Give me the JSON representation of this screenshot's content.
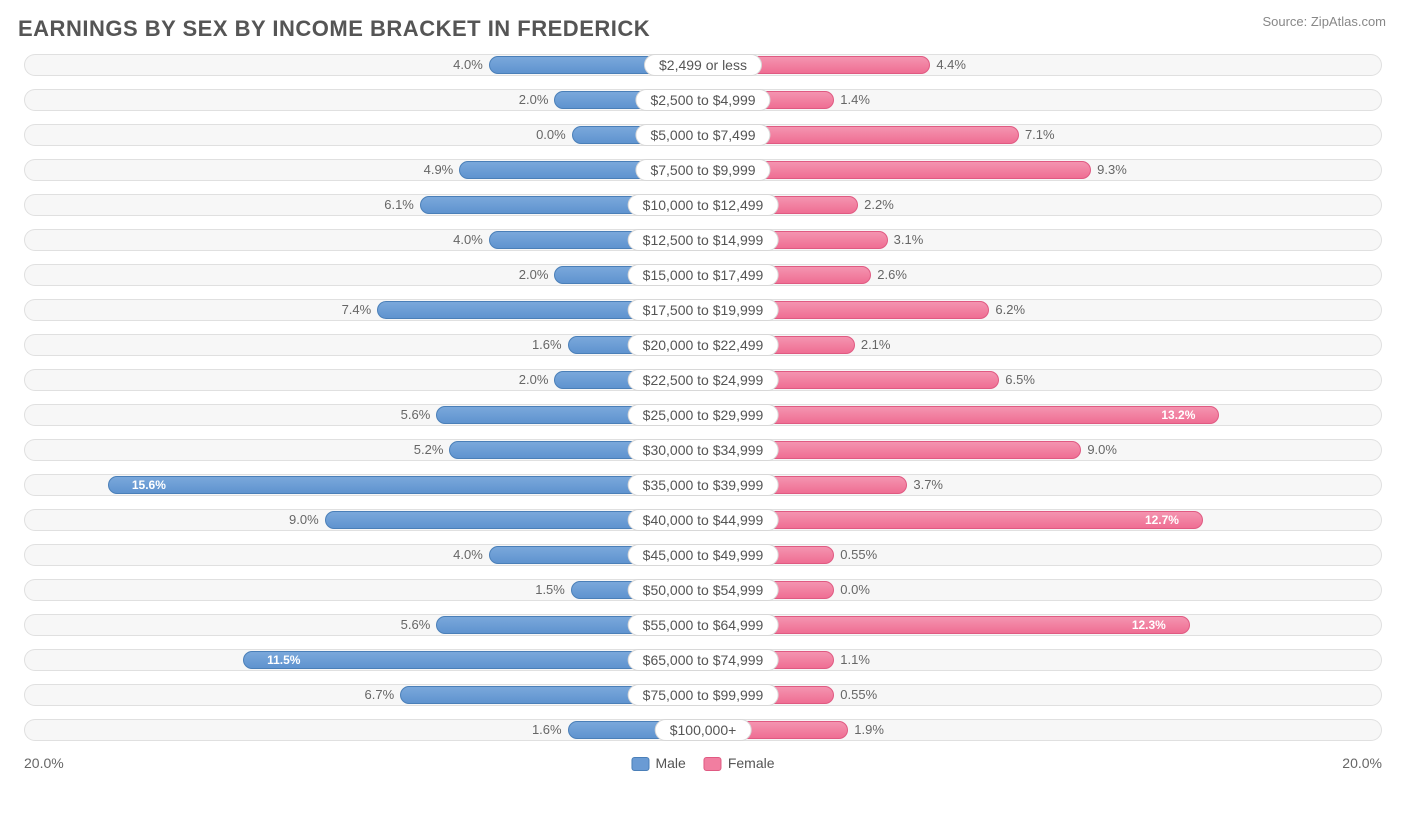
{
  "title": "EARNINGS BY SEX BY INCOME BRACKET IN FREDERICK",
  "source": "Source: ZipAtlas.com",
  "axis_max": 20.0,
  "axis_left_label": "20.0%",
  "axis_right_label": "20.0%",
  "male_color": "#6a9bd4",
  "male_border": "#4a7fb8",
  "female_color": "#f17ea0",
  "female_border": "#e05a82",
  "track_bg": "#f7f7f7",
  "track_border": "#e0e0e0",
  "background_color": "#ffffff",
  "label_fontsize": 14,
  "value_fontsize": 13,
  "title_fontsize": 22,
  "inside_threshold": 11.0,
  "legend": {
    "male": "Male",
    "female": "Female"
  },
  "rows": [
    {
      "label": "$2,499 or less",
      "male": 4.0,
      "female": 4.4
    },
    {
      "label": "$2,500 to $4,999",
      "male": 2.0,
      "female": 1.4
    },
    {
      "label": "$5,000 to $7,499",
      "male": 0.0,
      "female": 7.1
    },
    {
      "label": "$7,500 to $9,999",
      "male": 4.9,
      "female": 9.3
    },
    {
      "label": "$10,000 to $12,499",
      "male": 6.1,
      "female": 2.2
    },
    {
      "label": "$12,500 to $14,999",
      "male": 4.0,
      "female": 3.1
    },
    {
      "label": "$15,000 to $17,499",
      "male": 2.0,
      "female": 2.6
    },
    {
      "label": "$17,500 to $19,999",
      "male": 7.4,
      "female": 6.2
    },
    {
      "label": "$20,000 to $22,499",
      "male": 1.6,
      "female": 2.1
    },
    {
      "label": "$22,500 to $24,999",
      "male": 2.0,
      "female": 6.5
    },
    {
      "label": "$25,000 to $29,999",
      "male": 5.6,
      "female": 13.2
    },
    {
      "label": "$30,000 to $34,999",
      "male": 5.2,
      "female": 9.0
    },
    {
      "label": "$35,000 to $39,999",
      "male": 15.6,
      "female": 3.7
    },
    {
      "label": "$40,000 to $44,999",
      "male": 9.0,
      "female": 12.7
    },
    {
      "label": "$45,000 to $49,999",
      "male": 4.0,
      "female": 0.55
    },
    {
      "label": "$50,000 to $54,999",
      "male": 1.5,
      "female": 0.0
    },
    {
      "label": "$55,000 to $64,999",
      "male": 5.6,
      "female": 12.3
    },
    {
      "label": "$65,000 to $74,999",
      "male": 11.5,
      "female": 1.1
    },
    {
      "label": "$75,000 to $99,999",
      "male": 6.7,
      "female": 0.55
    },
    {
      "label": "$100,000+",
      "male": 1.6,
      "female": 1.9
    }
  ]
}
